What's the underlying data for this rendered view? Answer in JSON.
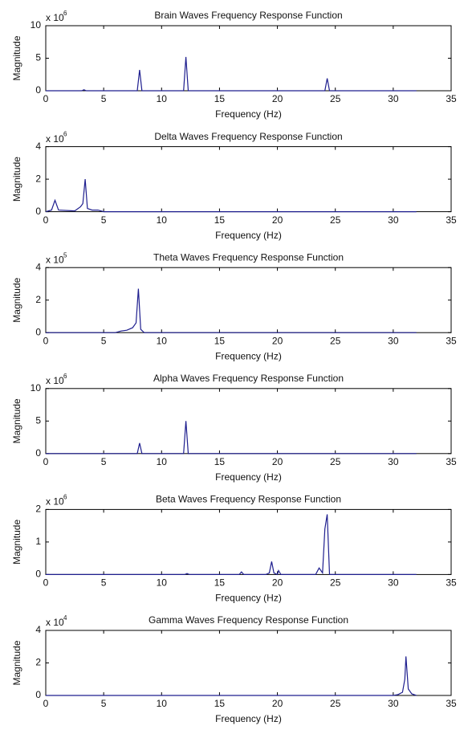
{
  "chart_data": [
    {
      "type": "line",
      "title": "Brain Waves Frequency Response Function",
      "x_label": "Frequency (Hz)",
      "y_label": "Magnitude",
      "y_multiplier": "x 10",
      "y_exponent": "6",
      "color": "#1f1f8f",
      "xlim": [
        0,
        35
      ],
      "xticks": [
        0,
        5,
        10,
        15,
        20,
        25,
        30,
        35
      ],
      "ylim": [
        0,
        10
      ],
      "yticks": [
        0,
        5,
        10
      ],
      "x": [
        0,
        3.1,
        3.3,
        3.5,
        7.9,
        8.1,
        8.3,
        11.9,
        12.1,
        12.3,
        24.1,
        24.3,
        24.5,
        32
      ],
      "values": [
        0,
        0,
        0.15,
        0,
        0,
        3.2,
        0,
        0,
        5.2,
        0,
        0,
        1.9,
        0,
        0
      ]
    },
    {
      "type": "line",
      "title": "Delta Waves Frequency Response Function",
      "x_label": "Frequency (Hz)",
      "y_label": "Magnitude",
      "y_multiplier": "x 10",
      "y_exponent": "6",
      "color": "#1f1f8f",
      "xlim": [
        0,
        35
      ],
      "xticks": [
        0,
        5,
        10,
        15,
        20,
        25,
        30,
        35
      ],
      "ylim": [
        0,
        4
      ],
      "yticks": [
        0,
        2,
        4
      ],
      "x": [
        0,
        0.5,
        0.8,
        1.1,
        2.5,
        3.0,
        3.2,
        3.4,
        3.6,
        4.0,
        4.5,
        5.0,
        32
      ],
      "values": [
        0,
        0.1,
        0.7,
        0.1,
        0.05,
        0.3,
        0.5,
        2.0,
        0.2,
        0.1,
        0.1,
        0,
        0
      ]
    },
    {
      "type": "line",
      "title": "Theta Waves Frequency Response Function",
      "x_label": "Frequency (Hz)",
      "y_label": "Magnitude",
      "y_multiplier": "x 10",
      "y_exponent": "5",
      "color": "#1f1f8f",
      "xlim": [
        0,
        35
      ],
      "xticks": [
        0,
        5,
        10,
        15,
        20,
        25,
        30,
        35
      ],
      "ylim": [
        0,
        4
      ],
      "yticks": [
        0,
        2,
        4
      ],
      "x": [
        0,
        6.0,
        6.5,
        7.0,
        7.5,
        7.8,
        8.0,
        8.2,
        8.5,
        32
      ],
      "values": [
        0,
        0,
        0.1,
        0.15,
        0.3,
        0.6,
        2.7,
        0.2,
        0,
        0
      ]
    },
    {
      "type": "line",
      "title": "Alpha Waves Frequency Response Function",
      "x_label": "Frequency (Hz)",
      "y_label": "Magnitude",
      "y_multiplier": "x 10",
      "y_exponent": "6",
      "color": "#1f1f8f",
      "xlim": [
        0,
        35
      ],
      "xticks": [
        0,
        5,
        10,
        15,
        20,
        25,
        30,
        35
      ],
      "ylim": [
        0,
        10
      ],
      "yticks": [
        0,
        5,
        10
      ],
      "x": [
        0,
        7.9,
        8.1,
        8.3,
        11.9,
        12.1,
        12.3,
        32
      ],
      "values": [
        0,
        0,
        1.6,
        0,
        0,
        5.0,
        0,
        0
      ]
    },
    {
      "type": "line",
      "title": "Beta Waves Frequency Response Function",
      "x_label": "Frequency (Hz)",
      "y_label": "Magnitude",
      "y_multiplier": "x 10",
      "y_exponent": "6",
      "color": "#1f1f8f",
      "xlim": [
        0,
        35
      ],
      "xticks": [
        0,
        5,
        10,
        15,
        20,
        25,
        30,
        35
      ],
      "ylim": [
        0,
        2
      ],
      "yticks": [
        0,
        1,
        2
      ],
      "x": [
        0,
        12.0,
        12.2,
        12.4,
        16.7,
        16.9,
        17.1,
        19.0,
        19.3,
        19.5,
        19.7,
        20.0,
        20.1,
        20.3,
        23.3,
        23.6,
        23.9,
        24.1,
        24.3,
        24.5,
        32
      ],
      "values": [
        0,
        0,
        0.03,
        0,
        0,
        0.08,
        0,
        0,
        0.05,
        0.4,
        0.05,
        0,
        0.12,
        0,
        0,
        0.2,
        0.05,
        1.4,
        1.85,
        0,
        0
      ]
    },
    {
      "type": "line",
      "title": "Gamma Waves Frequency Response Function",
      "x_label": "Frequency (Hz)",
      "y_label": "Magnitude",
      "y_multiplier": "x 10",
      "y_exponent": "4",
      "color": "#1f1f8f",
      "xlim": [
        0,
        35
      ],
      "xticks": [
        0,
        5,
        10,
        15,
        20,
        25,
        30,
        35
      ],
      "ylim": [
        0,
        4
      ],
      "yticks": [
        0,
        2,
        4
      ],
      "x": [
        0,
        30.0,
        30.4,
        30.8,
        31.0,
        31.1,
        31.3,
        31.6,
        32
      ],
      "values": [
        0,
        0,
        0.05,
        0.2,
        1.0,
        2.4,
        0.4,
        0.1,
        0
      ]
    }
  ]
}
